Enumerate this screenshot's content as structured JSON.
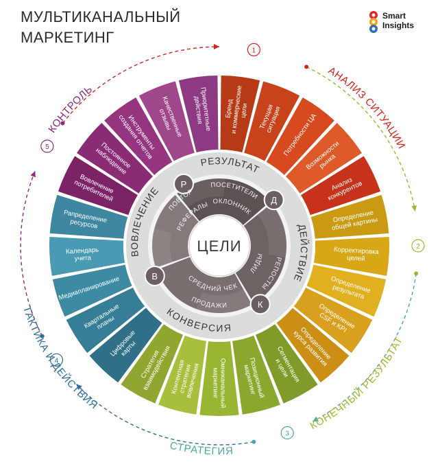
{
  "title": {
    "line1": "МУЛЬТИКАНАЛЬНЫЙ",
    "line2": "МАРКЕТИНГ"
  },
  "logo": {
    "line1": "Smart",
    "line2": "Insights"
  },
  "colors": {
    "situation": "#d23c1c",
    "objectives": "#d8a21a",
    "strategy": "#9ab230",
    "tactics": "#3f8fb2",
    "control": "#8a2b80",
    "core": "#6d5f5f"
  },
  "stages": [
    {
      "num": "1",
      "label": "АНАЛИЗ СИТУАЦИИ",
      "color": "#d0261d"
    },
    {
      "num": "2",
      "label": "КОНЕЧНЫЙ РЕЗУЛЬТАТ",
      "color": "#a5b52c"
    },
    {
      "num": "3",
      "label": "СТРАТЕГИЯ",
      "color": "#4aa8a3"
    },
    {
      "num": "4",
      "label": "ТАКТИКА И ДЕЙСТВИЯ",
      "color": "#2e6f9a"
    },
    {
      "num": "5",
      "label": "КОНТРОЛЬ",
      "color": "#8b2a7e"
    }
  ],
  "segments": [
    {
      "lines": [
        "Бренд",
        "и коммерческие",
        "цели"
      ],
      "color": "#b73a16"
    },
    {
      "lines": [
        "Текущая",
        "ситуация"
      ],
      "color": "#c8421b"
    },
    {
      "lines": [
        "Потребности ЦА"
      ],
      "color": "#d74a1f"
    },
    {
      "lines": [
        "Возможности",
        "рынка"
      ],
      "color": "#de5a28"
    },
    {
      "lines": [
        "Анализ",
        "конкурентов"
      ],
      "color": "#c6331a"
    },
    {
      "lines": [
        "Определение",
        "общей картины"
      ],
      "color": "#c99a12"
    },
    {
      "lines": [
        "Корректировка",
        "целей"
      ],
      "color": "#d8a616"
    },
    {
      "lines": [
        "Определение",
        "результата"
      ],
      "color": "#e0b020"
    },
    {
      "lines": [
        "Определение",
        "CSF и KPI"
      ],
      "color": "#d9a01e"
    },
    {
      "lines": [
        "Определение",
        "курса развития"
      ],
      "color": "#cc8f16"
    },
    {
      "lines": [
        "Сегментация",
        "и цели"
      ],
      "color": "#7f9b2a"
    },
    {
      "lines": [
        "Позиционный",
        "маркетинг"
      ],
      "color": "#8aa82e"
    },
    {
      "lines": [
        "Омниканальный",
        "маркетинг"
      ],
      "color": "#98b534"
    },
    {
      "lines": [
        "Контентная",
        "стратегия",
        "вовлечения"
      ],
      "color": "#a6bf3c"
    },
    {
      "lines": [
        "Стратегия",
        "взаимодействия"
      ],
      "color": "#8fa730"
    },
    {
      "lines": [
        "Цифровые",
        "карты"
      ],
      "color": "#2f6f88"
    },
    {
      "lines": [
        "Квартальные",
        "планы"
      ],
      "color": "#367d96"
    },
    {
      "lines": [
        "Медиапланирование"
      ],
      "color": "#3d8aa3"
    },
    {
      "lines": [
        "Календарь",
        "учета"
      ],
      "color": "#4a9ab3"
    },
    {
      "lines": [
        "Рапределение",
        "ресурсов"
      ],
      "color": "#3f86a0"
    },
    {
      "lines": [
        "Вовлечение",
        "потребителей"
      ],
      "color": "#7c2366"
    },
    {
      "lines": [
        "Постоянное",
        "наблюдение"
      ],
      "color": "#8a2b76"
    },
    {
      "lines": [
        "Инструменты",
        "создания отчетов"
      ],
      "color": "#95347f"
    },
    {
      "lines": [
        "Качественные",
        "отзывы"
      ],
      "color": "#a0478b"
    },
    {
      "lines": [
        "Приоритетные",
        "действия"
      ],
      "color": "#8d3a82"
    }
  ],
  "core": {
    "center": "ЦЕЛИ",
    "ring_labels": [
      {
        "text": "РЕЗУЛЬТАТ",
        "badge": "Р"
      },
      {
        "text": "ДЕЙСТВИЕ",
        "badge": "Д"
      },
      {
        "text": "КОНВЕРСИЯ",
        "badge": "К"
      },
      {
        "text": "ВОВЛЕЧЕНИЕ",
        "badge": "В"
      }
    ],
    "inner": [
      "ПОСЕТИТЕЛИ",
      "ПОКЛОННИКИ",
      "ЛИДЫ",
      "РЕПОСТЫ",
      "СРЕДНИЙ ЧЕК",
      "ПРОДАЖИ",
      "ПОВТОР",
      "РЕФЕРАЛЫ"
    ]
  }
}
